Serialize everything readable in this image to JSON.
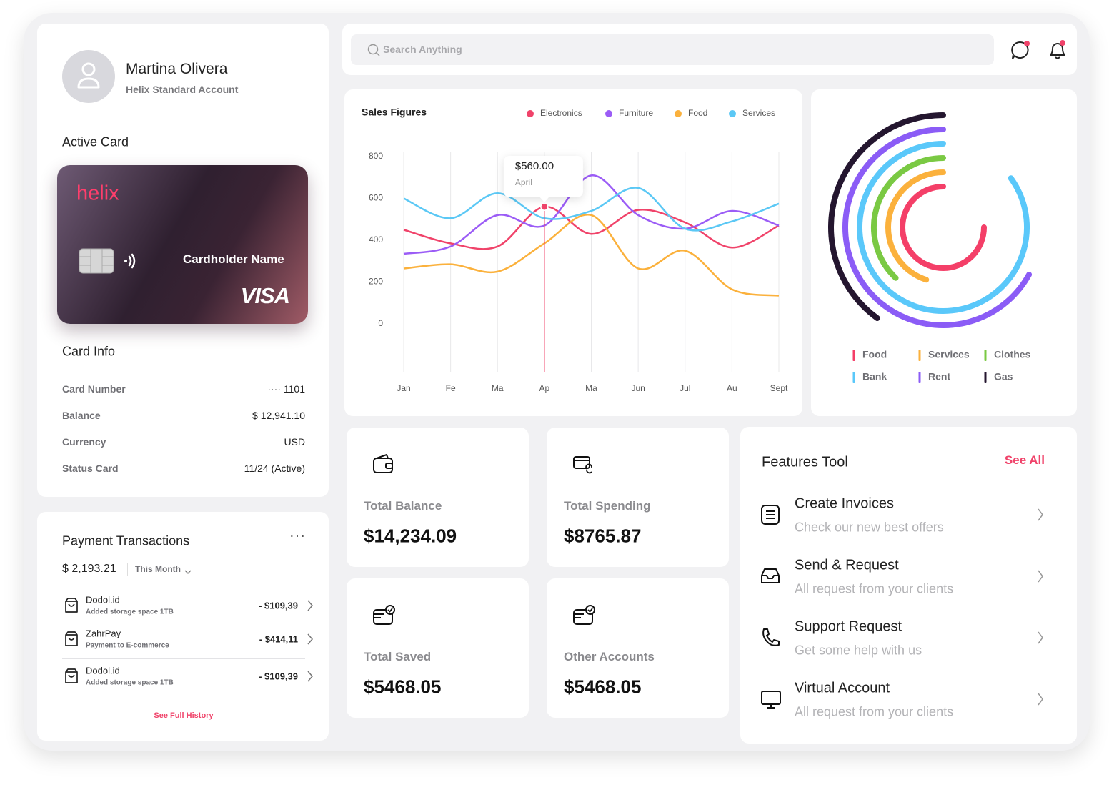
{
  "profile": {
    "name": "Martina Olivera",
    "account": "Helix Standard Account"
  },
  "search": {
    "placeholder": "Search Anything"
  },
  "active_card": {
    "heading": "Active Card",
    "brand": "helix",
    "holder": "Cardholder Name",
    "network": "VISA"
  },
  "card_info": {
    "heading": "Card Info",
    "rows": [
      {
        "label": "Card Number",
        "value": "···· 1101"
      },
      {
        "label": "Balance",
        "value": "$ 12,941.10"
      },
      {
        "label": "Currency",
        "value": "USD"
      },
      {
        "label": "Status Card",
        "value": "11/24 (Active)"
      }
    ]
  },
  "payments": {
    "heading": "Payment Transactions",
    "total": "$ 2,193.21",
    "period": "This Month",
    "items": [
      {
        "name": "Dodol.id",
        "description": "Added storage space 1TB",
        "amount": "- $109,39"
      },
      {
        "name": "ZahrPay",
        "description": "Payment to E-commerce",
        "amount": "- $414,11"
      },
      {
        "name": "Dodol.id",
        "description": "Added storage space 1TB",
        "amount": "- $109,39"
      }
    ],
    "link": "See Full History"
  },
  "stats": [
    {
      "label": "Total Balance",
      "value": "$14,234.09"
    },
    {
      "label": "Total Spending",
      "value": "$8765.87"
    },
    {
      "label": "Total Saved",
      "value": "$5468.05"
    },
    {
      "label": "Other Accounts",
      "value": "$5468.05"
    }
  ],
  "features": {
    "heading": "Features Tool",
    "link": "See All",
    "items": [
      {
        "title": "Create Invoices",
        "subtitle": "Check our new best offers"
      },
      {
        "title": "Send & Request",
        "subtitle": "All request from your clients"
      },
      {
        "title": "Support Request",
        "subtitle": "Get some help with us"
      },
      {
        "title": "Virtual Account",
        "subtitle": "All request from your clients"
      }
    ]
  },
  "chart_data": [
    {
      "type": "line",
      "title": "Sales Figures",
      "categories": [
        "Jan",
        "Fe",
        "Ma",
        "Ap",
        "Ma",
        "Jun",
        "Jul",
        "Au",
        "Sept"
      ],
      "ylim": [
        0,
        800
      ],
      "yticks": [
        0,
        200,
        400,
        600,
        800
      ],
      "series": [
        {
          "name": "Electronics",
          "color": "#f0436a",
          "values": [
            450,
            385,
            370,
            560,
            430,
            545,
            485,
            365,
            470
          ]
        },
        {
          "name": "Furniture",
          "color": "#9b5cf6",
          "values": [
            335,
            370,
            520,
            470,
            710,
            520,
            455,
            540,
            470
          ]
        },
        {
          "name": "Food",
          "color": "#fbb13c",
          "values": [
            265,
            285,
            250,
            385,
            520,
            265,
            350,
            165,
            135
          ]
        },
        {
          "name": "Services",
          "color": "#5bc8f5",
          "values": [
            600,
            505,
            625,
            505,
            540,
            650,
            455,
            490,
            575
          ]
        }
      ],
      "tooltip": {
        "value_label": "$560.00",
        "category": "April"
      }
    },
    {
      "type": "radial",
      "series": [
        {
          "name": "Food",
          "color": "#f43f68",
          "value": 75
        },
        {
          "name": "Services",
          "color": "#fbb13c",
          "value": 45
        },
        {
          "name": "Clothes",
          "color": "#7ac943",
          "value": 38
        },
        {
          "name": "Bank",
          "color": "#5ac8fa",
          "value": 85
        },
        {
          "name": "Rent",
          "color": "#8b5cf6",
          "value": 67
        },
        {
          "name": "Gas",
          "color": "#24162f",
          "value": 40
        }
      ]
    }
  ]
}
